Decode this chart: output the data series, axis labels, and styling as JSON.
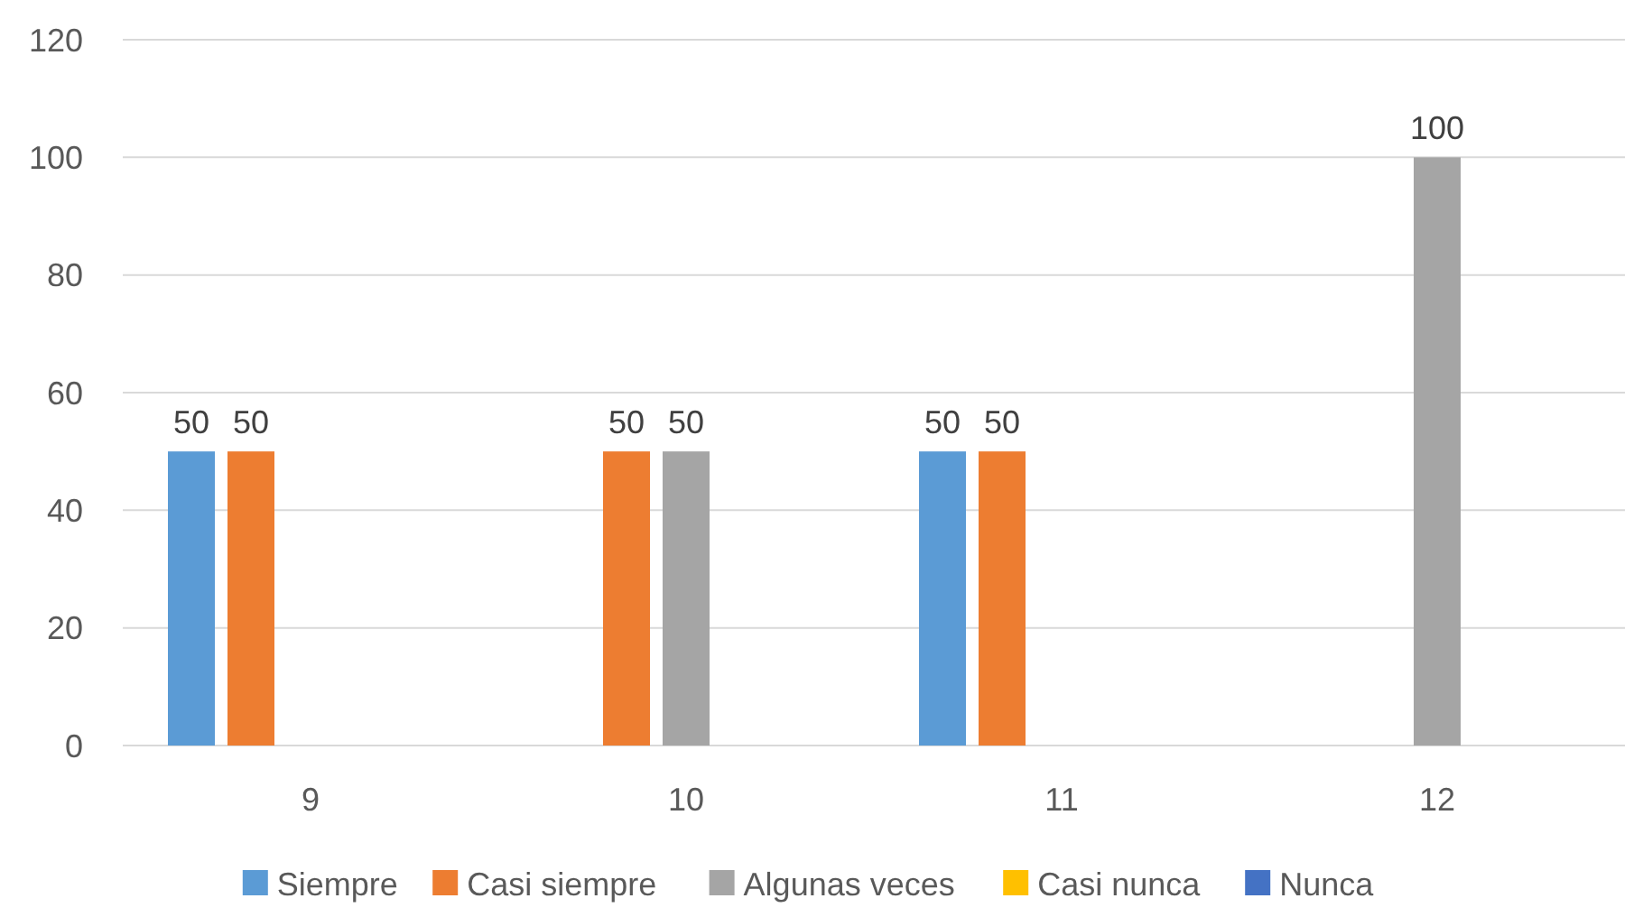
{
  "chart_data": {
    "type": "bar",
    "categories": [
      "9",
      "10",
      "11",
      "12"
    ],
    "series": [
      {
        "name": "Siempre",
        "color": "#5b9bd5",
        "values": [
          50,
          null,
          50,
          null
        ]
      },
      {
        "name": "Casi siempre",
        "color": "#ed7d31",
        "values": [
          50,
          50,
          50,
          null
        ]
      },
      {
        "name": "Algunas veces",
        "color": "#a5a5a5",
        "values": [
          null,
          50,
          null,
          100
        ]
      },
      {
        "name": "Casi nunca",
        "color": "#ffc000",
        "values": [
          null,
          null,
          null,
          null
        ]
      },
      {
        "name": "Nunca",
        "color": "#4472c4",
        "values": [
          null,
          null,
          null,
          null
        ]
      }
    ],
    "ylim": [
      0,
      120
    ],
    "yticks": [
      0,
      20,
      40,
      60,
      80,
      100,
      120
    ],
    "grid": "y",
    "legend": "bottom",
    "data_labels": true
  }
}
